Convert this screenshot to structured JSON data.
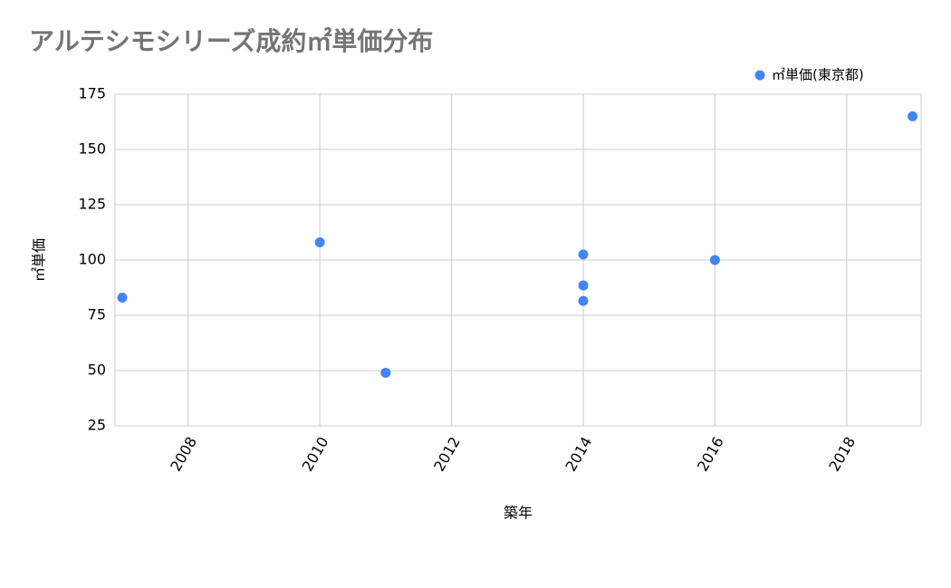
{
  "chart_data": {
    "type": "scatter",
    "title": "アルテシモシリーズ成約㎡単価分布",
    "x_label": "築年",
    "y_label": "㎡単価",
    "series": [
      {
        "name": "㎡単価(東京都)",
        "color": "#4285f4",
        "x": [
          2007,
          2010,
          2011,
          2014,
          2014,
          2014,
          2016,
          2019
        ],
        "values": [
          83,
          108,
          49,
          102.5,
          88.5,
          81.5,
          100,
          165
        ]
      }
    ],
    "xlim": [
      2006.89,
      2019.13
    ],
    "xticks": [
      2008,
      2010,
      2012,
      2014,
      2016,
      2018
    ],
    "ylim": [
      25,
      175
    ],
    "yticks": [
      25,
      50,
      75,
      100,
      125,
      150,
      175
    ],
    "grid": true,
    "legend": "top-right"
  }
}
